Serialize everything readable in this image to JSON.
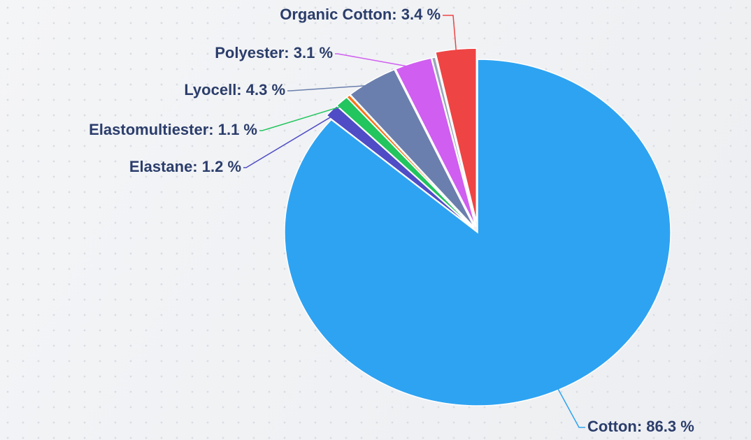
{
  "chart_data": {
    "type": "pie",
    "values": [
      86.3,
      1.2,
      1.1,
      0.3,
      4.3,
      3.1,
      0.3,
      3.4
    ],
    "value_labels": [
      "Cotton: 86.3 %",
      "Elastane: 1.2 %",
      "Elastomultiester: 1.1 %",
      null,
      "Lyocell: 4.3 %",
      "Polyester: 3.1 %",
      null,
      "Organic Cotton: 3.4 %"
    ],
    "colors": [
      "#2ea3f2",
      "#4f4cc6",
      "#22c55e",
      "#f97316",
      "#6a7fad",
      "#d05ef0",
      "#9aa8b8",
      "#ef4444"
    ]
  }
}
